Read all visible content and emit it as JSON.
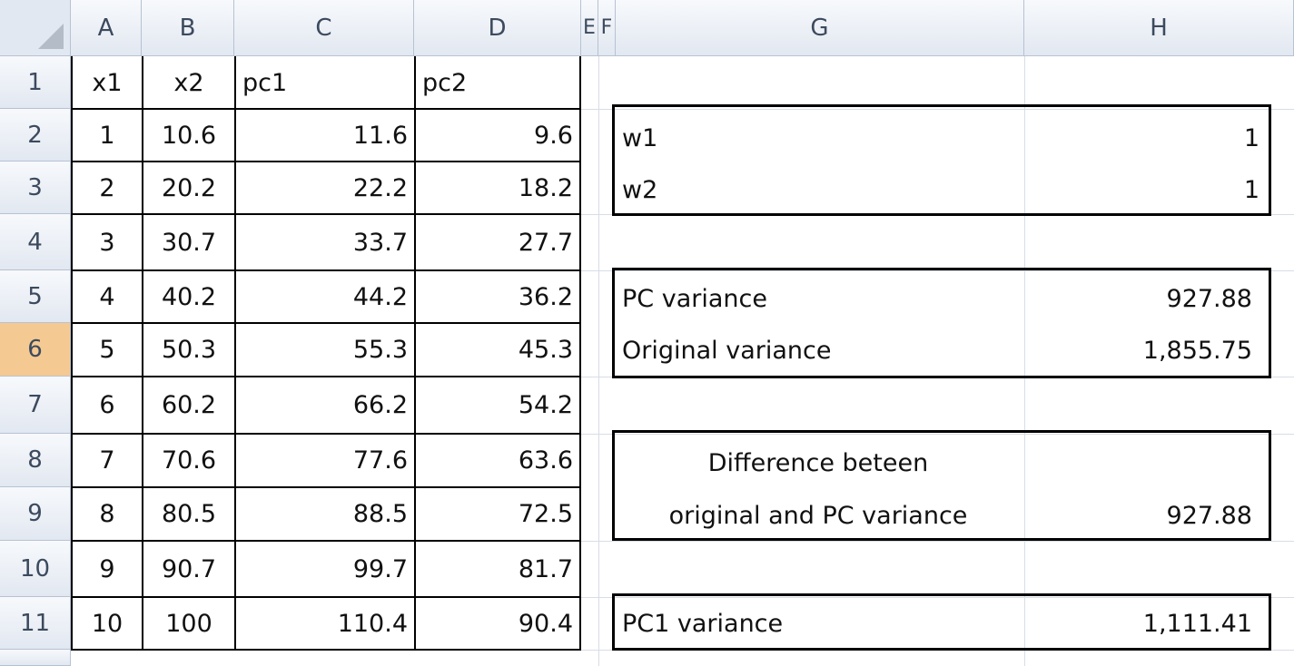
{
  "columns": [
    "A",
    "B",
    "C",
    "D",
    "E",
    "F",
    "G",
    "H"
  ],
  "rows": [
    "1",
    "2",
    "3",
    "4",
    "5",
    "6",
    "7",
    "8",
    "9",
    "10",
    "11"
  ],
  "selected_row": "6",
  "table": {
    "headers": {
      "x1": "x1",
      "x2": "x2",
      "pc1": "pc1",
      "pc2": "pc2"
    },
    "x1": [
      "1",
      "2",
      "3",
      "4",
      "5",
      "6",
      "7",
      "8",
      "9",
      "10"
    ],
    "x2": [
      "10.6",
      "20.2",
      "30.7",
      "40.2",
      "50.3",
      "60.2",
      "70.6",
      "80.5",
      "90.7",
      "100"
    ],
    "pc1": [
      "11.6",
      "22.2",
      "33.7",
      "44.2",
      "55.3",
      "66.2",
      "77.6",
      "88.5",
      "99.7",
      "110.4"
    ],
    "pc2": [
      "9.6",
      "18.2",
      "27.7",
      "36.2",
      "45.3",
      "54.2",
      "63.6",
      "72.5",
      "81.7",
      "90.4"
    ]
  },
  "weights": {
    "w1_label": "w1",
    "w1_value": "1",
    "w2_label": "w2",
    "w2_value": "1"
  },
  "variance": {
    "pc_label": "PC variance",
    "pc_value": "927.88",
    "original_label": "Original variance",
    "original_value": "1,855.75"
  },
  "difference": {
    "label_line1": "Difference beteen",
    "label_line2": "original and PC variance",
    "value": "927.88"
  },
  "pc1": {
    "label": "PC1 variance",
    "value": "1,111.41"
  },
  "colors": {
    "header_bg": "#e2e8f1",
    "selected_row_bg": "#f5c992",
    "gridline": "#d7dde6"
  }
}
